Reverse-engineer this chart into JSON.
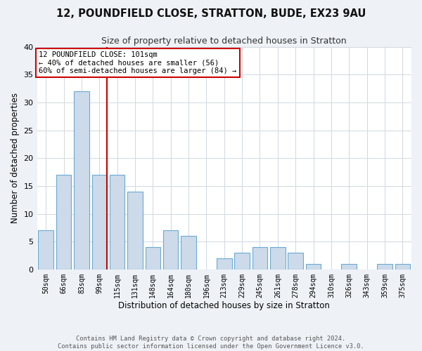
{
  "title": "12, POUNDFIELD CLOSE, STRATTON, BUDE, EX23 9AU",
  "subtitle": "Size of property relative to detached houses in Stratton",
  "xlabel": "Distribution of detached houses by size in Stratton",
  "ylabel": "Number of detached properties",
  "bar_labels": [
    "50sqm",
    "66sqm",
    "83sqm",
    "99sqm",
    "115sqm",
    "131sqm",
    "148sqm",
    "164sqm",
    "180sqm",
    "196sqm",
    "213sqm",
    "229sqm",
    "245sqm",
    "261sqm",
    "278sqm",
    "294sqm",
    "310sqm",
    "326sqm",
    "343sqm",
    "359sqm",
    "375sqm"
  ],
  "bar_values": [
    7,
    17,
    32,
    17,
    17,
    14,
    4,
    7,
    6,
    0,
    2,
    3,
    4,
    4,
    3,
    1,
    0,
    1,
    0,
    1,
    1
  ],
  "bar_color": "#ccdaea",
  "bar_edge_color": "#6aaad4",
  "vertical_line_x": 3,
  "vertical_line_color": "#cc0000",
  "annotation_text": "12 POUNDFIELD CLOSE: 101sqm\n← 40% of detached houses are smaller (56)\n60% of semi-detached houses are larger (84) →",
  "annotation_box_color": "#ffffff",
  "annotation_box_edge_color": "#cc0000",
  "ylim": [
    0,
    40
  ],
  "yticks": [
    0,
    5,
    10,
    15,
    20,
    25,
    30,
    35,
    40
  ],
  "footer_line1": "Contains HM Land Registry data © Crown copyright and database right 2024.",
  "footer_line2": "Contains public sector information licensed under the Open Government Licence v3.0.",
  "background_color": "#eef2f7",
  "plot_background_color": "#ffffff",
  "grid_color": "#d0d8e0"
}
